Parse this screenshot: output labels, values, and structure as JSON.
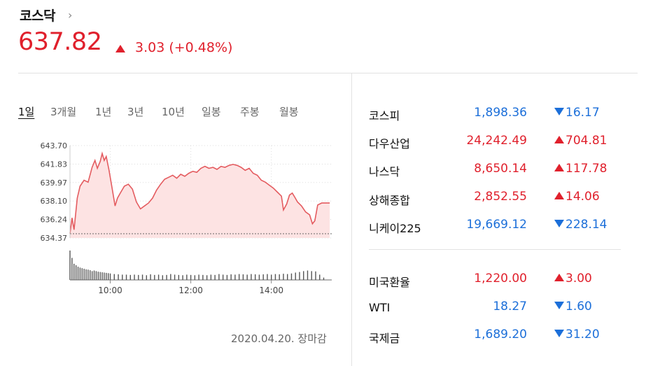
{
  "header": {
    "title": "코스닥",
    "title_arrow": "›",
    "price": "637.82",
    "change": "3.03 (+0.48%)",
    "direction": "up"
  },
  "tabs": [
    {
      "label": "1일",
      "active": true
    },
    {
      "label": "3개월",
      "active": false
    },
    {
      "label": "1년",
      "active": false
    },
    {
      "label": "3년",
      "active": false
    },
    {
      "label": "10년",
      "active": false
    },
    {
      "label": "일봉",
      "active": false
    },
    {
      "label": "주봉",
      "active": false
    },
    {
      "label": "월봉",
      "active": false
    }
  ],
  "chart_data": {
    "type": "area",
    "y_ticks": [
      "643.70",
      "641.83",
      "639.97",
      "638.10",
      "636.24",
      "634.37"
    ],
    "ylim": [
      634.37,
      643.7
    ],
    "x_ticks": [
      "10:00",
      "12:00",
      "14:00"
    ],
    "xlim_hours": [
      9.0,
      15.5
    ],
    "prev_close": 634.79,
    "series": [
      {
        "values": [
          [
            9.0,
            634.8
          ],
          [
            9.05,
            636.4
          ],
          [
            9.1,
            635.2
          ],
          [
            9.18,
            638.4
          ],
          [
            9.25,
            639.6
          ],
          [
            9.35,
            640.2
          ],
          [
            9.45,
            640.0
          ],
          [
            9.55,
            641.5
          ],
          [
            9.62,
            642.2
          ],
          [
            9.68,
            641.4
          ],
          [
            9.75,
            642.1
          ],
          [
            9.8,
            642.9
          ],
          [
            9.85,
            642.2
          ],
          [
            9.9,
            642.6
          ],
          [
            9.97,
            641.2
          ],
          [
            10.05,
            639.3
          ],
          [
            10.12,
            637.6
          ],
          [
            10.18,
            638.4
          ],
          [
            10.25,
            638.9
          ],
          [
            10.35,
            639.6
          ],
          [
            10.45,
            639.8
          ],
          [
            10.55,
            639.3
          ],
          [
            10.65,
            638.0
          ],
          [
            10.75,
            637.3
          ],
          [
            10.85,
            637.6
          ],
          [
            10.95,
            637.9
          ],
          [
            11.05,
            638.4
          ],
          [
            11.15,
            639.2
          ],
          [
            11.25,
            639.8
          ],
          [
            11.35,
            640.3
          ],
          [
            11.45,
            640.5
          ],
          [
            11.55,
            640.7
          ],
          [
            11.65,
            640.4
          ],
          [
            11.75,
            640.8
          ],
          [
            11.85,
            640.6
          ],
          [
            11.95,
            640.9
          ],
          [
            12.05,
            641.1
          ],
          [
            12.15,
            641.0
          ],
          [
            12.25,
            641.4
          ],
          [
            12.35,
            641.6
          ],
          [
            12.45,
            641.4
          ],
          [
            12.55,
            641.5
          ],
          [
            12.65,
            641.3
          ],
          [
            12.75,
            641.6
          ],
          [
            12.85,
            641.5
          ],
          [
            12.95,
            641.7
          ],
          [
            13.05,
            641.8
          ],
          [
            13.15,
            641.7
          ],
          [
            13.25,
            641.5
          ],
          [
            13.35,
            641.2
          ],
          [
            13.45,
            641.4
          ],
          [
            13.55,
            640.9
          ],
          [
            13.65,
            640.7
          ],
          [
            13.75,
            640.2
          ],
          [
            13.85,
            640.0
          ],
          [
            13.95,
            639.7
          ],
          [
            14.05,
            639.4
          ],
          [
            14.15,
            639.0
          ],
          [
            14.25,
            638.6
          ],
          [
            14.3,
            637.2
          ],
          [
            14.38,
            637.8
          ],
          [
            14.45,
            638.7
          ],
          [
            14.52,
            638.9
          ],
          [
            14.58,
            638.5
          ],
          [
            14.65,
            638.0
          ],
          [
            14.75,
            637.6
          ],
          [
            14.85,
            637.0
          ],
          [
            14.95,
            636.7
          ],
          [
            15.02,
            635.8
          ],
          [
            15.08,
            636.1
          ],
          [
            15.15,
            637.7
          ],
          [
            15.25,
            637.9
          ],
          [
            15.35,
            637.9
          ],
          [
            15.45,
            637.9
          ]
        ]
      }
    ],
    "volume": {
      "x_hours": [
        9.0,
        9.05,
        9.1,
        9.15,
        9.2,
        9.25,
        9.3,
        9.35,
        9.4,
        9.45,
        9.5,
        9.55,
        9.6,
        9.65,
        9.7,
        9.75,
        9.8,
        9.85,
        9.9,
        9.95,
        10.0,
        10.1,
        10.2,
        10.3,
        10.4,
        10.5,
        10.6,
        10.7,
        10.8,
        10.9,
        11.0,
        11.1,
        11.2,
        11.3,
        11.4,
        11.5,
        11.6,
        11.7,
        11.8,
        11.9,
        12.0,
        12.1,
        12.2,
        12.3,
        12.4,
        12.5,
        12.6,
        12.7,
        12.8,
        12.9,
        13.0,
        13.1,
        13.2,
        13.3,
        13.4,
        13.5,
        13.6,
        13.7,
        13.8,
        13.9,
        14.0,
        14.1,
        14.2,
        14.3,
        14.4,
        14.5,
        14.6,
        14.7,
        14.8,
        14.9,
        15.0,
        15.1,
        15.2,
        15.3
      ],
      "values": [
        1.0,
        0.75,
        0.55,
        0.5,
        0.45,
        0.42,
        0.4,
        0.38,
        0.36,
        0.35,
        0.33,
        0.3,
        0.32,
        0.3,
        0.28,
        0.27,
        0.26,
        0.25,
        0.24,
        0.23,
        0.22,
        0.2,
        0.19,
        0.18,
        0.18,
        0.17,
        0.18,
        0.17,
        0.18,
        0.16,
        0.19,
        0.17,
        0.18,
        0.16,
        0.17,
        0.2,
        0.18,
        0.17,
        0.16,
        0.18,
        0.17,
        0.16,
        0.18,
        0.17,
        0.16,
        0.18,
        0.17,
        0.2,
        0.18,
        0.17,
        0.19,
        0.18,
        0.2,
        0.19,
        0.18,
        0.2,
        0.19,
        0.18,
        0.19,
        0.2,
        0.18,
        0.2,
        0.19,
        0.21,
        0.2,
        0.22,
        0.25,
        0.27,
        0.3,
        0.32,
        0.3,
        0.29,
        0.18,
        0.08
      ]
    },
    "colors": {
      "line": "#e45c60",
      "fill": "#fde3e3",
      "volume": "#555555",
      "axis": "#888888",
      "prev_close": "#666666"
    }
  },
  "footer": {
    "date": "2020.04.20. 장마감"
  },
  "markets": [
    {
      "name": "코스피",
      "value": "1,898.36",
      "change": "16.17",
      "direction": "down"
    },
    {
      "name": "다우산업",
      "value": "24,242.49",
      "change": "704.81",
      "direction": "up"
    },
    {
      "name": "나스닥",
      "value": "8,650.14",
      "change": "117.78",
      "direction": "up"
    },
    {
      "name": "상해종합",
      "value": "2,852.55",
      "change": "14.06",
      "direction": "up"
    },
    {
      "name": "니케이225",
      "value": "19,669.12",
      "change": "228.14",
      "direction": "down"
    }
  ],
  "fx": [
    {
      "name": "미국환율",
      "value": "1,220.00",
      "change": "3.00",
      "direction": "up"
    },
    {
      "name": "WTI",
      "value": "18.27",
      "change": "1.60",
      "direction": "down"
    },
    {
      "name": "국제금",
      "value": "1,689.20",
      "change": "31.20",
      "direction": "down"
    }
  ]
}
